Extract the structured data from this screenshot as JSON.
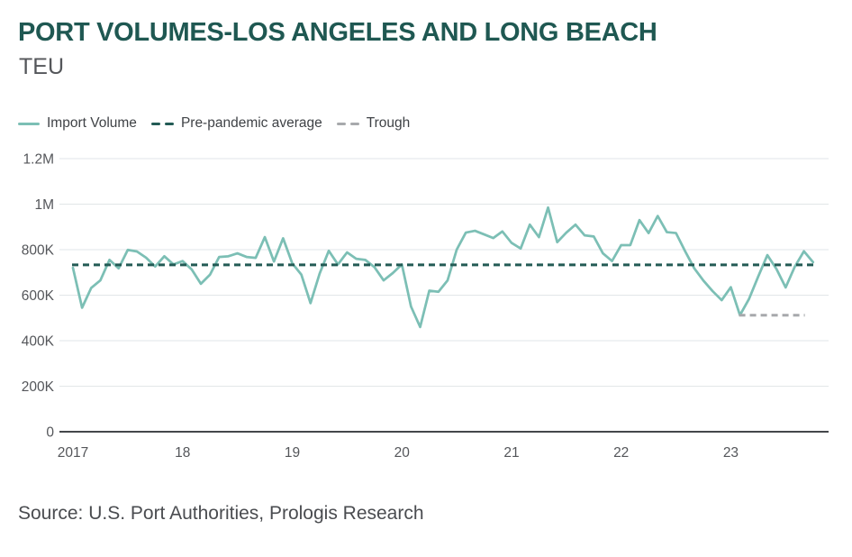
{
  "header": {
    "title": "PORT VOLUMES-LOS ANGELES AND LONG BEACH",
    "subtitle": "TEU"
  },
  "legend": {
    "items": [
      {
        "label": "Import Volume",
        "style": "solid",
        "color": "#7CBFB5"
      },
      {
        "label": "Pre-pandemic average",
        "style": "dashed",
        "color": "#235B55"
      },
      {
        "label": "Trough",
        "style": "dashed",
        "color": "#A7A9AC"
      }
    ]
  },
  "footer": {
    "source": "Source: U.S. Port Authorities, Prologis Research"
  },
  "chart_data": {
    "type": "line",
    "title": "PORT VOLUMES-LOS ANGELES AND LONG BEACH",
    "unit_label": "TEU",
    "grid": true,
    "legend_position": "top-left",
    "ylim": [
      0,
      1200000
    ],
    "x_range_monthly": {
      "start": "2017-01",
      "end": "2023-10"
    },
    "y_ticks": [
      {
        "value": 0,
        "label": "0"
      },
      {
        "value": 200000,
        "label": "200K"
      },
      {
        "value": 400000,
        "label": "400K"
      },
      {
        "value": 600000,
        "label": "600K"
      },
      {
        "value": 800000,
        "label": "800K"
      },
      {
        "value": 1000000,
        "label": "1M"
      },
      {
        "value": 1200000,
        "label": "1.2M"
      }
    ],
    "x_ticks": [
      {
        "month_index": 0,
        "label": "2017"
      },
      {
        "month_index": 12,
        "label": "18"
      },
      {
        "month_index": 24,
        "label": "19"
      },
      {
        "month_index": 36,
        "label": "20"
      },
      {
        "month_index": 48,
        "label": "21"
      },
      {
        "month_index": 60,
        "label": "22"
      },
      {
        "month_index": 72,
        "label": "23"
      }
    ],
    "series": [
      {
        "name": "Import Volume",
        "type": "line",
        "style": "solid",
        "color": "#7CBFB5",
        "start": "2017-01",
        "frequency": "monthly",
        "values": [
          720000,
          545000,
          632000,
          665000,
          755000,
          718000,
          799000,
          792000,
          765000,
          726000,
          771000,
          735000,
          750000,
          713000,
          650000,
          690000,
          768000,
          771000,
          784000,
          768000,
          764000,
          855000,
          748000,
          850000,
          740000,
          690000,
          565000,
          695000,
          795000,
          735000,
          788000,
          760000,
          755000,
          723000,
          665000,
          697000,
          735000,
          550000,
          460000,
          620000,
          615000,
          665000,
          800000,
          875000,
          883000,
          867000,
          851000,
          880000,
          830000,
          805000,
          910000,
          855000,
          985000,
          833000,
          875000,
          910000,
          863000,
          858000,
          784000,
          750000,
          820000,
          820000,
          930000,
          873000,
          948000,
          877000,
          873000,
          793000,
          718000,
          664000,
          618000,
          578000,
          635000,
          512000,
          584000,
          682000,
          776000,
          715000,
          634000,
          725000,
          793000,
          745000
        ]
      },
      {
        "name": "Pre-pandemic average",
        "type": "reference-line",
        "style": "dashed",
        "color": "#235B55",
        "value": 733000,
        "start_month_index": 0,
        "end_month_index": 81
      },
      {
        "name": "Trough",
        "type": "reference-line",
        "style": "dashed",
        "color": "#A7A9AC",
        "value": 512000,
        "start_month_index": 73,
        "end_month_index": 80
      }
    ]
  }
}
